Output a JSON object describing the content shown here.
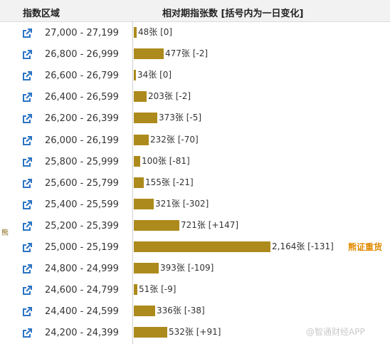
{
  "header": {
    "range_label": "指数区域",
    "count_label": "相对期指张数 [括号内为一日变化]"
  },
  "side_label": "熊",
  "annotation": "熊证重货",
  "watermark": "@智通财经APP",
  "colors": {
    "bar": "#ad8a1c",
    "annotation": "#e08a00",
    "icon": "#2b74c4"
  },
  "chart_data": {
    "type": "bar",
    "orientation": "horizontal",
    "categories": [
      "27,000 - 27,199",
      "26,800 - 26,999",
      "26,600 - 26,799",
      "26,400 - 26,599",
      "26,200 - 26,399",
      "26,000 - 26,199",
      "25,800 - 25,999",
      "25,600 - 25,799",
      "25,400 - 25,599",
      "25,200 - 25,399",
      "25,000 - 25,199",
      "24,800 - 24,999",
      "24,600 - 24,799",
      "24,400 - 24,599",
      "24,200 - 24,399"
    ],
    "values": [
      48,
      477,
      34,
      203,
      373,
      232,
      100,
      155,
      321,
      721,
      2164,
      393,
      51,
      336,
      532
    ],
    "value_labels": [
      "48张",
      "477张",
      "34张",
      "203张",
      "373张",
      "232张",
      "100张",
      "155张",
      "321张",
      "721张",
      "2,164张",
      "393张",
      "51张",
      "336张",
      "532张"
    ],
    "changes": [
      "[0]",
      "[-2]",
      "[0]",
      "[-2]",
      "[-5]",
      "[-70]",
      "[-81]",
      "[-21]",
      "[-302]",
      "[+147]",
      "[-131]",
      "[-109]",
      "[-9]",
      "[-38]",
      "[+91]"
    ],
    "xlim": [
      0,
      2164
    ]
  },
  "rows": [
    {
      "range": "27,000 - 27,199",
      "count": "48张 [0]"
    },
    {
      "range": "26,800 - 26,999",
      "count": "477张 [-2]"
    },
    {
      "range": "26,600 - 26,799",
      "count": "34张 [0]"
    },
    {
      "range": "26,400 - 26,599",
      "count": "203张 [-2]"
    },
    {
      "range": "26,200 - 26,399",
      "count": "373张 [-5]"
    },
    {
      "range": "26,000 - 26,199",
      "count": "232张 [-70]"
    },
    {
      "range": "25,800 - 25,999",
      "count": "100张 [-81]"
    },
    {
      "range": "25,600 - 25,799",
      "count": "155张 [-21]"
    },
    {
      "range": "25,400 - 25,599",
      "count": "321张 [-302]"
    },
    {
      "range": "25,200 - 25,399",
      "count": "721张 [+147]"
    },
    {
      "range": "25,000 - 25,199",
      "count": "2,164张 [-131]"
    },
    {
      "range": "24,800 - 24,999",
      "count": "393张 [-109]"
    },
    {
      "range": "24,600 - 24,799",
      "count": "51张 [-9]"
    },
    {
      "range": "24,400 - 24,599",
      "count": "336张 [-38]"
    },
    {
      "range": "24,200 - 24,399",
      "count": "532张 [+91]"
    }
  ]
}
